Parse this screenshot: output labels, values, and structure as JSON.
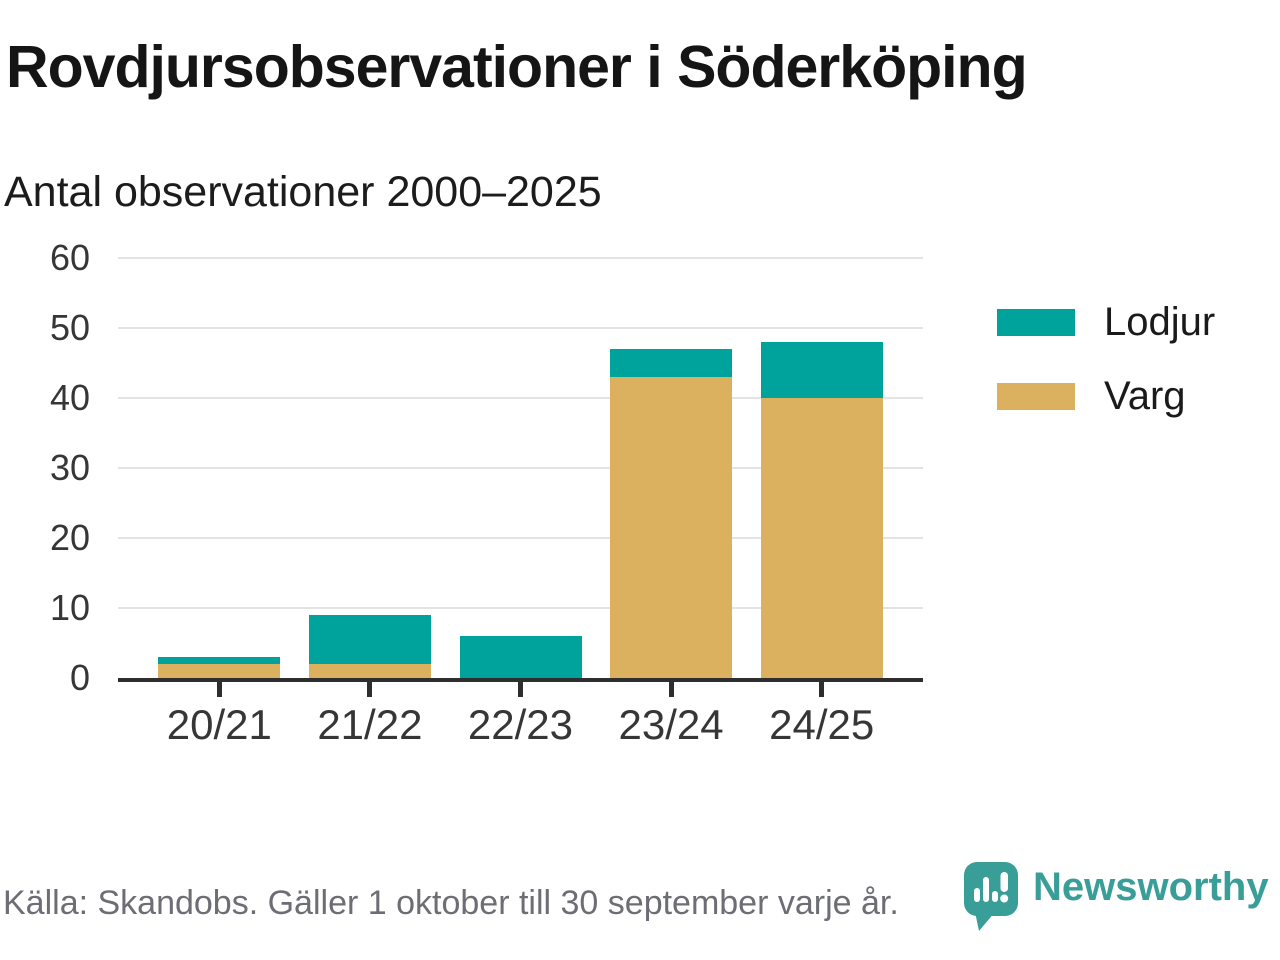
{
  "header": {
    "title": "Rovdjursobservationer i Söderköping",
    "subtitle": "Antal observationer 2000–2025"
  },
  "chart_data": {
    "type": "bar",
    "stacked": true,
    "categories": [
      "20/21",
      "21/22",
      "22/23",
      "23/24",
      "24/25"
    ],
    "series": [
      {
        "name": "Lodjur",
        "color": "#00A39C",
        "values": [
          1,
          7,
          6,
          4,
          8
        ]
      },
      {
        "name": "Varg",
        "color": "#DBB05E",
        "values": [
          2,
          2,
          0,
          43,
          40
        ]
      }
    ],
    "stack_bottom_to_top": [
      "Varg",
      "Lodjur"
    ],
    "totals": [
      3,
      9,
      6,
      47,
      48
    ],
    "title": "Rovdjursobservationer i Söderköping",
    "subtitle": "Antal observationer 2000–2025",
    "xlabel": "",
    "ylabel": "",
    "ylim": [
      0,
      60
    ],
    "yticks": [
      0,
      10,
      20,
      30,
      40,
      50,
      60
    ],
    "grid": true,
    "legend_position": "right"
  },
  "legend": {
    "items": [
      {
        "label": "Lodjur",
        "color": "#00A39C"
      },
      {
        "label": "Varg",
        "color": "#DBB05E"
      }
    ]
  },
  "footer": {
    "source": "Källa: Skandobs. Gäller 1 oktober till 30 september varje år.",
    "brand": "Newsworthy",
    "logo_icon": "bar-chart-speech-bubble-icon"
  },
  "colors": {
    "series_teal": "#00A39C",
    "series_gold": "#DBB05E",
    "axis": "#2E2E2E",
    "grid": "#E3E3E3",
    "text": "#1A1A1A",
    "muted_text": "#6D6D75",
    "brand_teal": "#3A9E98",
    "background": "#FFFFFF"
  }
}
